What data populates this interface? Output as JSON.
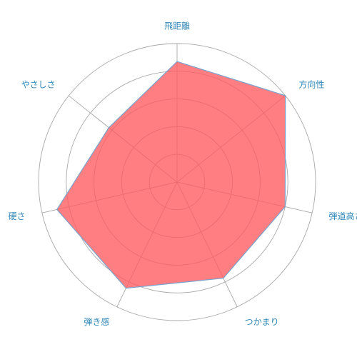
{
  "chart_data": {
    "type": "radar",
    "axes": [
      "飛距離",
      "方向性",
      "弾道高さ",
      "つかまり",
      "弾き感",
      "硬さ",
      "やさしさ"
    ],
    "max": 10,
    "ring_count": 5,
    "grid": true,
    "series": [
      {
        "values": [
          8.7,
          10.0,
          8.0,
          7.7,
          8.5,
          8.9,
          6.3
        ],
        "color": "#ff5a5f",
        "stroke": "#7aa3cc"
      }
    ]
  }
}
